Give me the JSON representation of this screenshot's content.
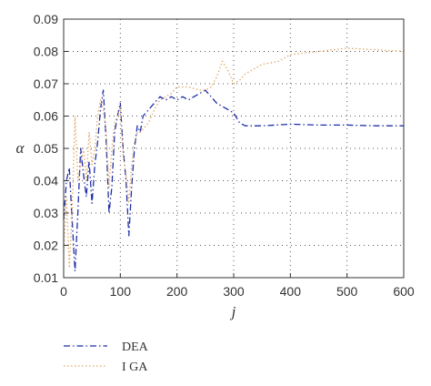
{
  "chart_data": {
    "type": "line",
    "xlabel": "j",
    "ylabel": "α",
    "xlim": [
      0,
      600
    ],
    "ylim": [
      0.01,
      0.09
    ],
    "xticks": [
      "0",
      "100",
      "200",
      "300",
      "400",
      "500",
      "600"
    ],
    "yticks": [
      "0.01",
      "0.02",
      "0.03",
      "0.04",
      "0.05",
      "0.06",
      "0.07",
      "0.08",
      "0.09"
    ],
    "grid": true,
    "legend_position": "bottom-left",
    "series": [
      {
        "name": "DEA",
        "color": "#1f2fa8",
        "style": "dash-dot",
        "x": [
          0,
          5,
          10,
          15,
          20,
          25,
          30,
          35,
          40,
          45,
          50,
          55,
          60,
          65,
          70,
          75,
          80,
          85,
          90,
          95,
          100,
          105,
          110,
          115,
          120,
          125,
          130,
          135,
          140,
          150,
          160,
          170,
          180,
          190,
          200,
          210,
          220,
          230,
          240,
          250,
          260,
          270,
          280,
          290,
          300,
          310,
          320,
          330,
          350,
          400,
          450,
          500,
          550,
          600
        ],
        "y": [
          0.028,
          0.04,
          0.044,
          0.028,
          0.012,
          0.03,
          0.05,
          0.042,
          0.035,
          0.046,
          0.033,
          0.045,
          0.052,
          0.062,
          0.068,
          0.052,
          0.03,
          0.038,
          0.055,
          0.06,
          0.064,
          0.05,
          0.04,
          0.023,
          0.038,
          0.05,
          0.057,
          0.055,
          0.06,
          0.062,
          0.064,
          0.066,
          0.065,
          0.066,
          0.065,
          0.066,
          0.065,
          0.066,
          0.067,
          0.068,
          0.066,
          0.064,
          0.063,
          0.062,
          0.061,
          0.058,
          0.057,
          0.057,
          0.057,
          0.0575,
          0.0572,
          0.0572,
          0.057,
          0.057
        ]
      },
      {
        "name": "I GA",
        "color": "#e0a868",
        "style": "dotted",
        "x": [
          0,
          5,
          10,
          15,
          20,
          25,
          30,
          35,
          40,
          45,
          50,
          55,
          60,
          65,
          70,
          75,
          80,
          85,
          90,
          95,
          100,
          105,
          110,
          115,
          120,
          125,
          130,
          135,
          140,
          150,
          160,
          170,
          180,
          190,
          200,
          210,
          220,
          230,
          240,
          250,
          260,
          270,
          280,
          290,
          300,
          310,
          320,
          330,
          350,
          380,
          400,
          450,
          500,
          550,
          600
        ],
        "y": [
          0.018,
          0.035,
          0.013,
          0.03,
          0.06,
          0.04,
          0.045,
          0.05,
          0.04,
          0.055,
          0.045,
          0.05,
          0.06,
          0.065,
          0.062,
          0.055,
          0.038,
          0.05,
          0.058,
          0.06,
          0.063,
          0.048,
          0.042,
          0.033,
          0.045,
          0.052,
          0.055,
          0.055,
          0.056,
          0.058,
          0.062,
          0.065,
          0.066,
          0.067,
          0.069,
          0.069,
          0.069,
          0.0685,
          0.068,
          0.068,
          0.069,
          0.072,
          0.077,
          0.074,
          0.07,
          0.071,
          0.073,
          0.074,
          0.076,
          0.077,
          0.079,
          0.08,
          0.081,
          0.0805,
          0.08
        ]
      }
    ]
  }
}
